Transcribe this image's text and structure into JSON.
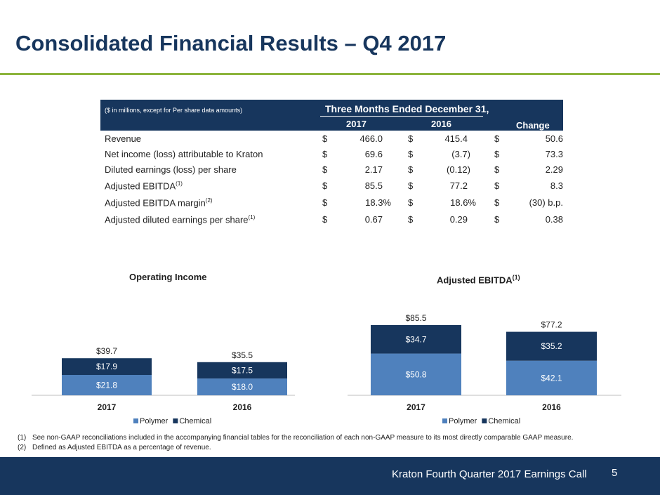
{
  "title": "Consolidated Financial Results – Q4 2017",
  "table": {
    "note": "($ in millions, except for Per share data amounts)",
    "period_label": "Three Months Ended December 31,",
    "col_2017": "2017",
    "col_2016": "2016",
    "col_change": "Change",
    "currency": "$",
    "rows": [
      {
        "label": "Revenue",
        "sup": "",
        "v2017": "466.0",
        "v2016": "415.4",
        "change": "50.6"
      },
      {
        "label": "Net income (loss) attributable to Kraton",
        "sup": "",
        "v2017": "69.6",
        "v2016": "(3.7)",
        "change": "73.3"
      },
      {
        "label": "Diluted earnings (loss) per share",
        "sup": "",
        "v2017": "2.17",
        "v2016": "(0.12)",
        "change": "2.29"
      },
      {
        "label": "Adjusted EBITDA",
        "sup": "(1)",
        "v2017": "85.5",
        "v2016": "77.2",
        "change": "8.3"
      },
      {
        "label": "Adjusted EBITDA margin",
        "sup": "(2)",
        "v2017": "18.3%",
        "v2016": "18.6%",
        "change": "(30) b.p."
      },
      {
        "label": "Adjusted diluted earnings per share",
        "sup": "(1)",
        "v2017": "0.67",
        "v2016": "0.29",
        "change": "0.38"
      }
    ]
  },
  "chart_data": [
    {
      "type": "bar",
      "stacked": true,
      "title": "Operating Income",
      "title_sup": "",
      "categories": [
        "2017",
        "2016"
      ],
      "series": [
        {
          "name": "Polymer",
          "color": "#4f81bd",
          "values": [
            21.8,
            18.0
          ],
          "labels": [
            "$21.8",
            "$18.0"
          ]
        },
        {
          "name": "Chemical",
          "color": "#17365d",
          "values": [
            17.9,
            17.5
          ],
          "labels": [
            "$17.9",
            "$17.5"
          ]
        }
      ],
      "totals": [
        39.7,
        35.5
      ],
      "total_labels": [
        "$39.7",
        "$35.5"
      ],
      "legend": [
        "Polymer",
        "Chemical"
      ],
      "legend_position": "bottom"
    },
    {
      "type": "bar",
      "stacked": true,
      "title": "Adjusted EBITDA",
      "title_sup": "(1)",
      "categories": [
        "2017",
        "2016"
      ],
      "series": [
        {
          "name": "Polymer",
          "color": "#4f81bd",
          "values": [
            50.8,
            42.1
          ],
          "labels": [
            "$50.8",
            "$42.1"
          ]
        },
        {
          "name": "Chemical",
          "color": "#17365d",
          "values": [
            34.7,
            35.2
          ],
          "labels": [
            "$34.7",
            "$35.2"
          ]
        }
      ],
      "totals": [
        85.5,
        77.2
      ],
      "total_labels": [
        "$85.5",
        "$77.2"
      ],
      "legend": [
        "Polymer",
        "Chemical"
      ],
      "legend_position": "bottom"
    }
  ],
  "footnotes": [
    {
      "num": "(1)",
      "text": "See non-GAAP reconciliations included in the accompanying financial tables for the reconciliation of each non-GAAP measure to its most directly comparable GAAP measure."
    },
    {
      "num": "(2)",
      "text": "Defined as Adjusted EBITDA as a percentage of revenue."
    }
  ],
  "footer": {
    "text": "Kraton Fourth Quarter 2017 Earnings Call",
    "page": "5"
  }
}
